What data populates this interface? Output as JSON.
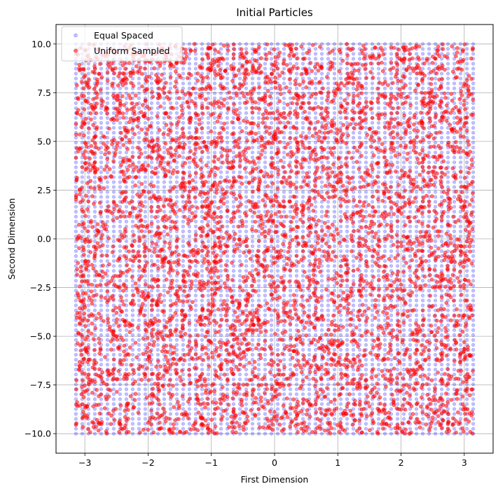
{
  "chart_data": {
    "type": "scatter",
    "title": "Initial Particles",
    "xlabel": "First Dimension",
    "ylabel": "Second Dimension",
    "xlim": [
      -3.456,
      3.456
    ],
    "ylim": [
      -11.0,
      11.0
    ],
    "xticks": [
      -3,
      -2,
      -1,
      0,
      1,
      2,
      3
    ],
    "xtick_labels": [
      "−3",
      "−2",
      "−1",
      "0",
      "1",
      "2",
      "3"
    ],
    "yticks": [
      -10.0,
      -7.5,
      -5.0,
      -2.5,
      0.0,
      2.5,
      5.0,
      7.5,
      10.0
    ],
    "ytick_labels": [
      "−10.0",
      "−7.5",
      "−5.0",
      "−2.5",
      "0.0",
      "2.5",
      "5.0",
      "7.5",
      "10.0"
    ],
    "grid": true,
    "legend_position": "top-left",
    "series": [
      {
        "name": "Equal Spaced",
        "color": "#0000ff",
        "alpha": 0.25,
        "pattern": "grid",
        "x_range": [
          -3.14159,
          3.14159
        ],
        "y_range": [
          -10.0,
          10.0
        ],
        "nx": 64,
        "ny": 80
      },
      {
        "name": "Uniform Sampled",
        "color": "#ff0000",
        "alpha": 0.55,
        "pattern": "uniform-random",
        "x_range": [
          -3.14159,
          3.14159
        ],
        "y_range": [
          -10.0,
          10.0
        ],
        "count": 5000
      }
    ]
  }
}
